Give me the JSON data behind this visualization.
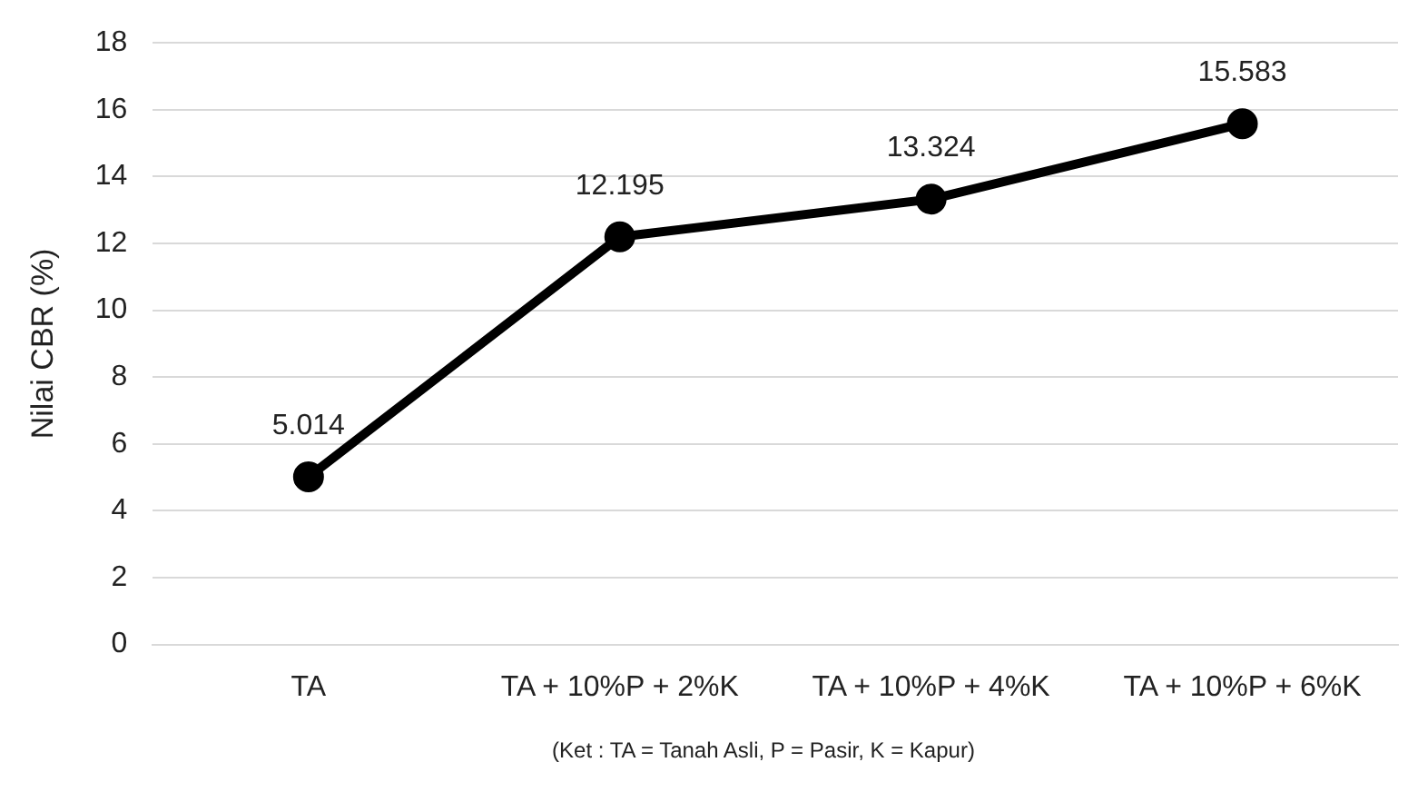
{
  "chart_data": {
    "type": "line",
    "ylabel": "Nilai CBR (%)",
    "categories": [
      "TA",
      "TA + 10%P + 2%K",
      "TA + 10%P + 4%K",
      "TA + 10%P + 6%K"
    ],
    "series": [
      {
        "color": "#000000",
        "values": [
          5.014,
          12.195,
          13.324,
          15.583
        ]
      }
    ],
    "ylim": [
      0,
      18
    ],
    "yticks": [
      0,
      2,
      4,
      6,
      8,
      10,
      12,
      14,
      16,
      18
    ],
    "grid": "y",
    "legend": false,
    "marker": "circle",
    "line_style": "solid",
    "data_labels": true,
    "annotations": [
      "(Ket : TA = Tanah Asli, P = Pasir, K = Kapur)"
    ]
  }
}
